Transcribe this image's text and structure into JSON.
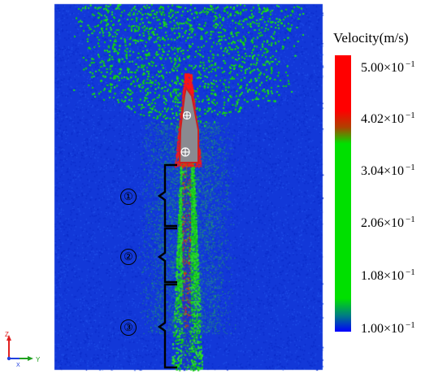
{
  "legend": {
    "title": "Velocity(m/s)",
    "tick_labels": [
      {
        "mantissa": "5.00×",
        "base": "10",
        "exponent": "−1"
      },
      {
        "mantissa": "4.02×",
        "base": "10",
        "exponent": "−1"
      },
      {
        "mantissa": "3.04×",
        "base": "10",
        "exponent": "−1"
      },
      {
        "mantissa": "2.06×",
        "base": "10",
        "exponent": "−1"
      },
      {
        "mantissa": "1.08×",
        "base": "10",
        "exponent": "−1"
      },
      {
        "mantissa": "1.00×",
        "base": "10",
        "exponent": "−1"
      }
    ],
    "colors": {
      "high": "#ff0000",
      "mid": "#00e000",
      "low": "#0000ff"
    }
  },
  "regions": [
    {
      "label": "①"
    },
    {
      "label": "②"
    },
    {
      "label": "③"
    }
  ],
  "axes": {
    "x_label": "X",
    "y_label": "Y",
    "z_label": "Z"
  },
  "colors": {
    "background_particles": "#1040e0",
    "green_particles": "#10d010",
    "red_particles": "#ff1010",
    "body_fill": "#8a8a90",
    "body_outline": "#cc2020"
  }
}
